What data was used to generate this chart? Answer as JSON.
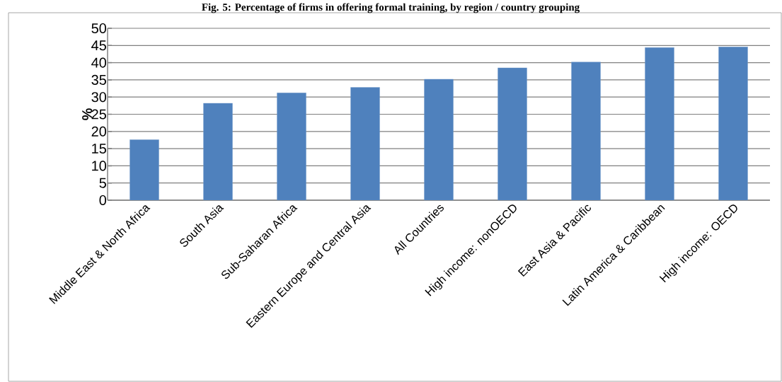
{
  "chart_data": {
    "type": "bar",
    "title": "Fig. 5: Percentage of firms in offering formal training, by region / country grouping",
    "ylabel": "%",
    "categories": [
      "Middle East & North Africa",
      "South Asia",
      "Sub-Saharan Africa",
      "Eastern Europe and Central Asia",
      "All Countries",
      "High income: nonOECD",
      "East Asia & Pacific",
      "Latin America & Caribbean",
      "High income: OECD"
    ],
    "values": [
      17.6,
      28.2,
      31.2,
      32.8,
      35.2,
      38.5,
      40.2,
      44.4,
      44.6
    ],
    "color": "#4f81bd",
    "ylim": [
      0,
      50
    ],
    "yticks": [
      0,
      5,
      10,
      15,
      20,
      25,
      30,
      35,
      40,
      45,
      50
    ],
    "grid": "y"
  }
}
